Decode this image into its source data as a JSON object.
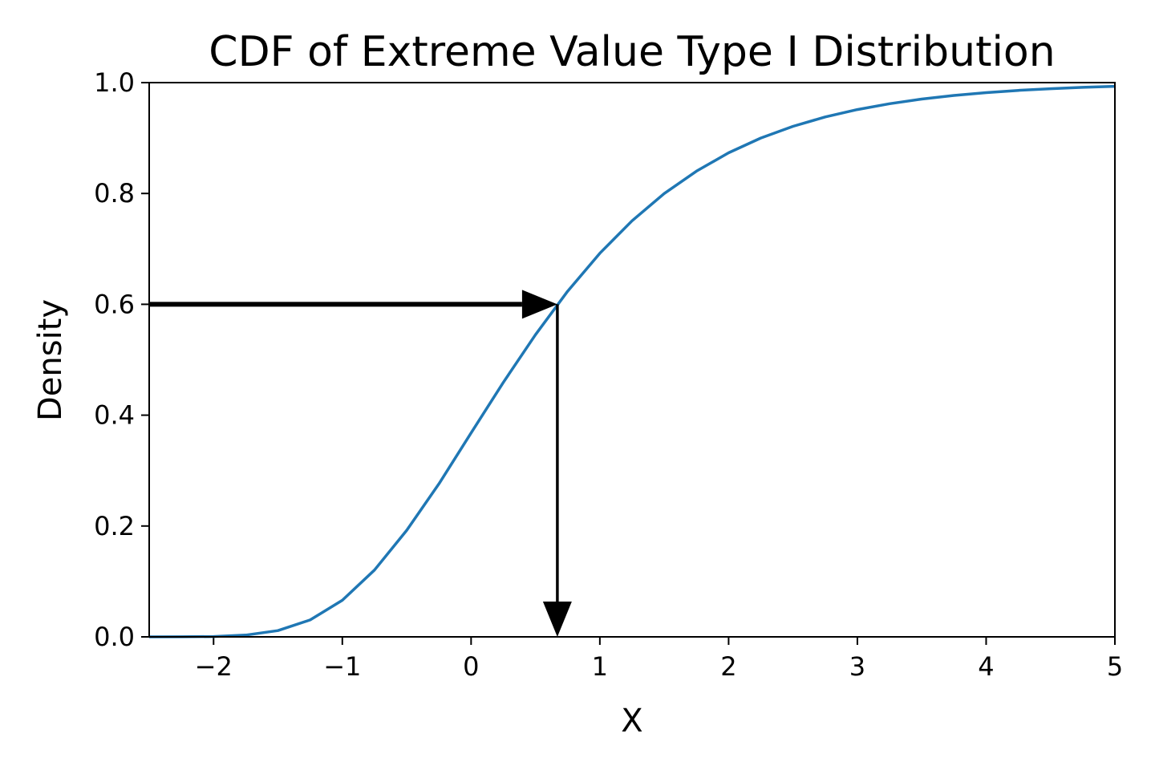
{
  "chart_data": {
    "type": "line",
    "title": "CDF of Extreme Value Type I Distribution",
    "xlabel": "X",
    "ylabel": "Density",
    "xlim": [
      -2.5,
      5
    ],
    "ylim": [
      0,
      1
    ],
    "x_ticks": [
      -2,
      -1,
      0,
      1,
      2,
      3,
      4,
      5
    ],
    "x_tick_labels": [
      "−2",
      "−1",
      "0",
      "1",
      "2",
      "3",
      "4",
      "5"
    ],
    "y_ticks": [
      0.0,
      0.2,
      0.4,
      0.6,
      0.8,
      1.0
    ],
    "y_tick_labels": [
      "0.0",
      "0.2",
      "0.4",
      "0.6",
      "0.8",
      "1.0"
    ],
    "grid": false,
    "series": [
      {
        "color": "#1f77b4",
        "x": [
          -2.5,
          -2.25,
          -2.0,
          -1.75,
          -1.5,
          -1.25,
          -1.0,
          -0.75,
          -0.5,
          -0.25,
          0.0,
          0.25,
          0.5,
          0.75,
          1.0,
          1.25,
          1.5,
          1.75,
          2.0,
          2.25,
          2.5,
          2.75,
          3.0,
          3.25,
          3.5,
          3.75,
          4.0,
          4.25,
          4.5,
          4.75,
          5.0
        ],
        "y": [
          0.0,
          0.0001,
          0.0006,
          0.0032,
          0.0113,
          0.0305,
          0.066,
          0.1206,
          0.1923,
          0.276,
          0.3679,
          0.4591,
          0.5452,
          0.6236,
          0.6922,
          0.7506,
          0.7999,
          0.8403,
          0.8734,
          0.9,
          0.9212,
          0.938,
          0.9514,
          0.962,
          0.9703,
          0.9768,
          0.9819,
          0.9859,
          0.989,
          0.9914,
          0.9933
        ]
      }
    ],
    "annotations": [
      {
        "type": "arrow",
        "from": [
          -2.5,
          0.6
        ],
        "to": [
          0.67,
          0.6
        ],
        "color": "#000000"
      },
      {
        "type": "arrow",
        "from": [
          0.67,
          0.6
        ],
        "to": [
          0.67,
          0.0
        ],
        "color": "#000000"
      }
    ]
  }
}
